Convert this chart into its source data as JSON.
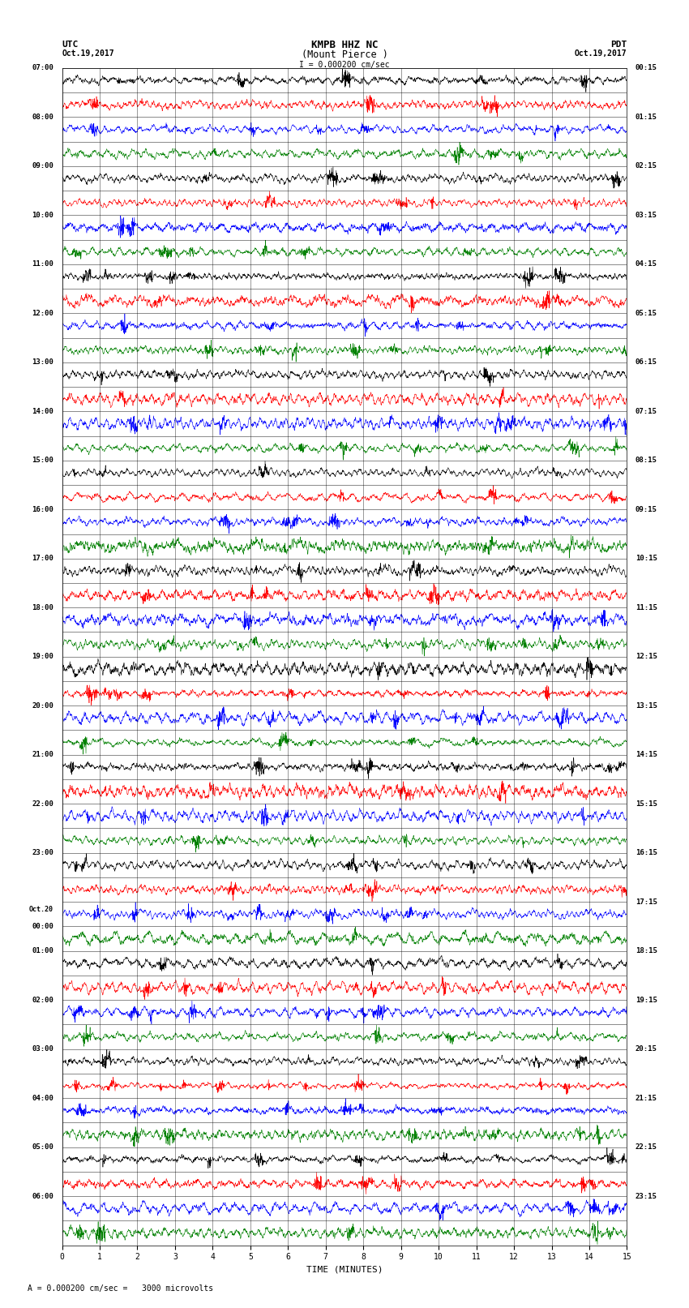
{
  "title_line1": "KMPB HHZ NC",
  "title_line2": "(Mount Pierce )",
  "scale_label": "I = 0.000200 cm/sec",
  "utc_label": "UTC",
  "pdt_label": "PDT",
  "date_left": "Oct.19,2017",
  "date_right": "Oct.19,2017",
  "xlabel": "TIME (MINUTES)",
  "scale_note": "A = 0.000200 cm/sec =   3000 microvolts",
  "left_times": [
    "07:00",
    "08:00",
    "09:00",
    "10:00",
    "11:00",
    "12:00",
    "13:00",
    "14:00",
    "15:00",
    "16:00",
    "17:00",
    "18:00",
    "19:00",
    "20:00",
    "21:00",
    "22:00",
    "23:00",
    "Oct.20\n00:00",
    "01:00",
    "02:00",
    "03:00",
    "04:00",
    "05:00",
    "06:00"
  ],
  "right_times": [
    "00:15",
    "01:15",
    "02:15",
    "03:15",
    "04:15",
    "05:15",
    "06:15",
    "07:15",
    "08:15",
    "09:15",
    "10:15",
    "11:15",
    "12:15",
    "13:15",
    "14:15",
    "15:15",
    "16:15",
    "17:15",
    "18:15",
    "19:15",
    "20:15",
    "21:15",
    "22:15",
    "23:15"
  ],
  "n_rows": 48,
  "n_cols": 3000,
  "x_ticks": [
    0,
    1,
    2,
    3,
    4,
    5,
    6,
    7,
    8,
    9,
    10,
    11,
    12,
    13,
    14,
    15
  ],
  "x_tick_labels": [
    "0",
    "1",
    "2",
    "3",
    "4",
    "5",
    "6",
    "7",
    "8",
    "9",
    "10",
    "11",
    "12",
    "13",
    "14",
    "15"
  ],
  "colors": [
    "black",
    "red",
    "blue",
    "green"
  ],
  "bg_color": "white",
  "fig_width": 8.5,
  "fig_height": 16.13,
  "dpi": 100
}
